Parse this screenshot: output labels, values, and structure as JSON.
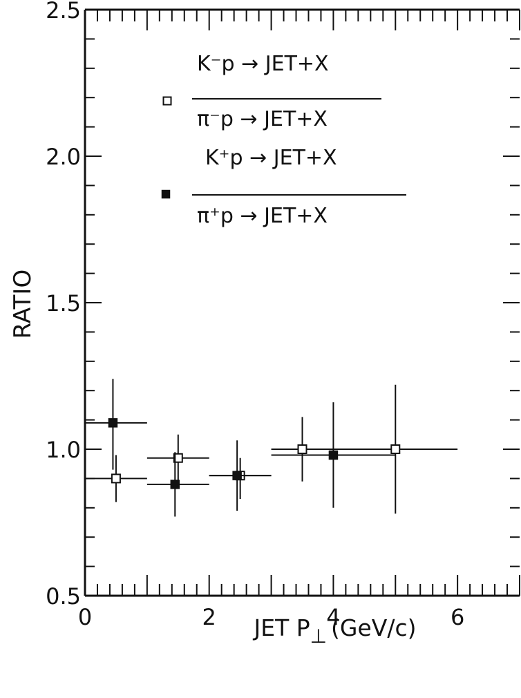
{
  "chart_data": {
    "type": "scatter",
    "xlabel": "JET P",
    "xlabel_sub": "⊥",
    "xlabel_units": "(GeV/c)",
    "ylabel": "RATIO",
    "xlim": [
      0,
      7
    ],
    "ylim": [
      0.5,
      2.5
    ],
    "x_ticks": [
      "0",
      "2",
      "4",
      "6"
    ],
    "y_ticks": [
      "0.5",
      "1.0",
      "1.5",
      "2.0",
      "2.5"
    ],
    "grid": false,
    "legend": [
      {
        "marker": "open-square",
        "numerator": "K⁻p → JET+X",
        "denominator": "π⁻p → JET+X"
      },
      {
        "marker": "filled-square",
        "numerator": "K⁺p → JET+X",
        "denominator": "π⁺p → JET+X"
      }
    ],
    "series": [
      {
        "marker": "open-square",
        "points": [
          {
            "x": 0.5,
            "y": 0.9,
            "xerr": [
              0.0,
              1.0
            ],
            "yerr": [
              0.82,
              0.98
            ]
          },
          {
            "x": 1.5,
            "y": 0.97,
            "xerr": [
              1.0,
              2.0
            ],
            "yerr": [
              0.87,
              1.05
            ]
          },
          {
            "x": 2.5,
            "y": 0.91,
            "xerr": [
              2.0,
              3.0
            ],
            "yerr": [
              0.83,
              0.97
            ]
          },
          {
            "x": 3.5,
            "y": 1.0,
            "xerr": [
              3.0,
              4.0
            ],
            "yerr": [
              0.89,
              1.11
            ]
          },
          {
            "x": 5.0,
            "y": 1.0,
            "xerr": [
              4.0,
              6.0
            ],
            "yerr": [
              0.78,
              1.22
            ]
          }
        ]
      },
      {
        "marker": "filled-square",
        "points": [
          {
            "x": 0.45,
            "y": 1.09,
            "xerr": [
              0.0,
              1.0
            ],
            "yerr": [
              0.93,
              1.24
            ]
          },
          {
            "x": 1.45,
            "y": 0.88,
            "xerr": [
              1.0,
              2.0
            ],
            "yerr": [
              0.77,
              0.99
            ]
          },
          {
            "x": 2.45,
            "y": 0.91,
            "xerr": [
              2.0,
              3.0
            ],
            "yerr": [
              0.79,
              1.03
            ]
          },
          {
            "x": 4.0,
            "y": 0.98,
            "xerr": [
              3.0,
              5.0
            ],
            "yerr": [
              0.8,
              1.16
            ]
          }
        ]
      }
    ]
  }
}
